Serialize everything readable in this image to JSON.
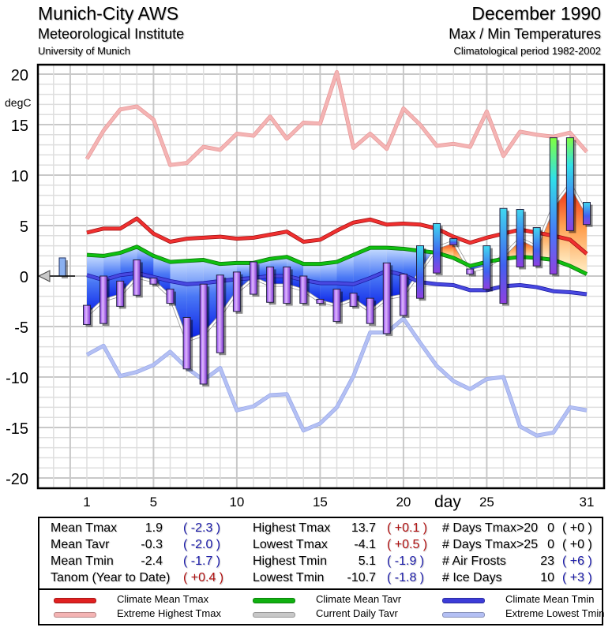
{
  "header": {
    "station": "Munich-City AWS",
    "institute": "Meteorological Institute",
    "university": "University of Munich",
    "month": "December 1990",
    "subtitle": "Max / Min Temperatures",
    "period": "Climatological period 1982-2002"
  },
  "chart_data": {
    "type": "bar",
    "title": "Max / Min Temperatures",
    "xlabel": "day",
    "ylabel": "degC",
    "ylim": [
      -21,
      21
    ],
    "xlim": [
      -2,
      32
    ],
    "y_ticks": [
      "20",
      "15",
      "10",
      "5",
      "0",
      "-5",
      "-10",
      "-15",
      "-20"
    ],
    "y_tick_values": [
      20,
      15,
      10,
      5,
      0,
      -5,
      -10,
      -15,
      -20
    ],
    "x_ticks": [
      "1",
      "5",
      "10",
      "15",
      "20",
      "25",
      "31"
    ],
    "x_tick_values": [
      1,
      5,
      10,
      15,
      20,
      25,
      31
    ],
    "grid": true,
    "days": [
      1,
      2,
      3,
      4,
      5,
      6,
      7,
      8,
      9,
      10,
      11,
      12,
      13,
      14,
      15,
      16,
      17,
      18,
      19,
      20,
      21,
      22,
      23,
      24,
      25,
      26,
      27,
      28,
      29,
      30,
      31
    ],
    "tmax": [
      -2.9,
      0.0,
      -0.5,
      1.6,
      -0.2,
      -1.3,
      -4.1,
      -0.8,
      0.1,
      0.4,
      1.4,
      0.9,
      0.9,
      0.0,
      -2.3,
      -1.3,
      -1.7,
      -2.2,
      1.3,
      0.2,
      3.0,
      5.2,
      3.7,
      0.7,
      3.0,
      6.7,
      6.6,
      4.8,
      13.7,
      13.7,
      7.3
    ],
    "tmin": [
      -4.8,
      -4.7,
      -3.0,
      -1.9,
      -0.8,
      -2.7,
      -9.2,
      -10.7,
      -7.6,
      -3.5,
      -1.8,
      -2.6,
      -2.7,
      -2.7,
      -2.7,
      -4.5,
      -3.0,
      -4.7,
      -5.7,
      -3.9,
      -2.2,
      0.3,
      3.1,
      0.2,
      -1.3,
      -2.7,
      0.9,
      1.0,
      0.2,
      4.5,
      5.1
    ],
    "series": [
      {
        "name": "Climate Mean Tmax",
        "color": "#e02020",
        "values": [
          4.3,
          4.7,
          4.7,
          5.7,
          4.2,
          3.4,
          3.7,
          3.8,
          3.9,
          3.7,
          3.8,
          4.1,
          4.4,
          3.4,
          3.6,
          4.5,
          5.3,
          5.6,
          5.1,
          5.2,
          5.1,
          4.7,
          3.9,
          3.3,
          3.8,
          4.2,
          4.6,
          4.3,
          4.0,
          3.6,
          2.2
        ]
      },
      {
        "name": "Climate Mean Tavr",
        "color": "#10b010",
        "values": [
          2.1,
          2.0,
          2.3,
          2.9,
          2.0,
          1.4,
          1.5,
          1.6,
          1.2,
          1.3,
          1.3,
          1.7,
          1.9,
          1.2,
          1.2,
          1.4,
          2.1,
          2.8,
          2.8,
          2.7,
          2.5,
          2.3,
          1.8,
          1.0,
          1.4,
          1.7,
          1.9,
          1.8,
          1.6,
          1.0,
          0.2
        ]
      },
      {
        "name": "Climate Mean Tmin",
        "color": "#3c3cd8",
        "values": [
          0.1,
          -0.4,
          0.1,
          0.3,
          -0.1,
          -0.5,
          -0.8,
          -0.7,
          -0.5,
          -0.3,
          -0.2,
          0.0,
          0.0,
          -0.4,
          -0.7,
          -0.7,
          -0.8,
          -0.2,
          0.5,
          0.1,
          -0.6,
          -0.8,
          -0.9,
          -1.4,
          -1.4,
          -1.0,
          -0.9,
          -1.1,
          -1.5,
          -1.6,
          -1.8
        ]
      },
      {
        "name": "Current Daily Tavr",
        "color": "#ffffff",
        "values": [
          -3.9,
          -2.4,
          -1.9,
          -0.1,
          -0.5,
          -2.0,
          -6.4,
          -5.8,
          -3.9,
          -1.6,
          -0.2,
          -0.9,
          -0.9,
          -1.4,
          -2.5,
          -2.9,
          -2.3,
          -3.5,
          -2.2,
          -1.9,
          0.4,
          2.8,
          3.4,
          0.5,
          0.9,
          2.0,
          3.7,
          2.9,
          6.9,
          9.1,
          6.2
        ]
      },
      {
        "name": "Extreme Highest Tmax",
        "color": "#f0a8a8",
        "values": [
          11.6,
          14.4,
          16.5,
          16.8,
          15.5,
          11.0,
          11.2,
          12.8,
          12.5,
          14.1,
          13.9,
          15.8,
          13.6,
          15.2,
          15.1,
          20.2,
          12.7,
          14.1,
          12.6,
          16.6,
          15.0,
          12.9,
          13.1,
          12.8,
          16.3,
          11.9,
          14.3,
          14.0,
          13.8,
          14.2,
          12.3
        ]
      },
      {
        "name": "Extreme Lowest Tmin",
        "color": "#a8b4f0",
        "values": [
          -7.8,
          -6.9,
          -9.9,
          -9.5,
          -8.8,
          -7.5,
          -9.1,
          -10.3,
          -9.1,
          -13.3,
          -12.9,
          -11.8,
          -11.7,
          -15.3,
          -14.6,
          -13.0,
          -9.9,
          -5.6,
          -5.6,
          -4.2,
          -6.6,
          -8.9,
          -10.4,
          -11.2,
          -10.2,
          -10.0,
          -14.9,
          -15.8,
          -15.5,
          -13.0,
          -13.3
        ]
      }
    ],
    "prior_anomaly_bar": {
      "top": 1.8,
      "bottom": 0.0
    }
  },
  "stats": {
    "col1": [
      {
        "label": "Mean Tmax",
        "value": "1.9",
        "anom": "( -2.3 )",
        "tone": "blue"
      },
      {
        "label": "Mean Tavr",
        "value": "-0.3",
        "anom": "( -2.0 )",
        "tone": "blue"
      },
      {
        "label": "Mean Tmin",
        "value": "-2.4",
        "anom": "( -1.7 )",
        "tone": "blue"
      },
      {
        "label": "Tanom (Year to Date)",
        "value": "",
        "anom": "( +0.4 )",
        "tone": "red"
      }
    ],
    "col2": [
      {
        "label": "Highest Tmax",
        "value": "13.7",
        "anom": "( +0.1 )",
        "tone": "red"
      },
      {
        "label": "Lowest Tmax",
        "value": "-4.1",
        "anom": "( +0.5 )",
        "tone": "red"
      },
      {
        "label": "Highest Tmin",
        "value": "5.1",
        "anom": "( -1.9 )",
        "tone": "blue"
      },
      {
        "label": "Lowest Tmin",
        "value": "-10.7",
        "anom": "( -1.8 )",
        "tone": "blue"
      }
    ],
    "col3": [
      {
        "label": "# Days Tmax>20",
        "value": "0",
        "anom": "( +0 )",
        "tone": "black"
      },
      {
        "label": "# Days Tmax>25",
        "value": "0",
        "anom": "( +0 )",
        "tone": "black"
      },
      {
        "label": "# Air Frosts",
        "value": "23",
        "anom": "( +6 )",
        "tone": "blue"
      },
      {
        "label": "# Ice Days",
        "value": "10",
        "anom": "( +3 )",
        "tone": "blue"
      }
    ]
  },
  "legend": [
    {
      "label": "Climate Mean Tmax",
      "color": "#e02020"
    },
    {
      "label": "Extreme Highest Tmax",
      "color": "#f4b4b4"
    },
    {
      "label": "Climate Mean Tavr",
      "color": "#10b010"
    },
    {
      "label": "Current Daily Tavr",
      "color": "#c8c8c8"
    },
    {
      "label": "Climate Mean Tmin",
      "color": "#3c3cd8"
    },
    {
      "label": "Extreme Lowest Tmin",
      "color": "#b4c0f4"
    }
  ]
}
